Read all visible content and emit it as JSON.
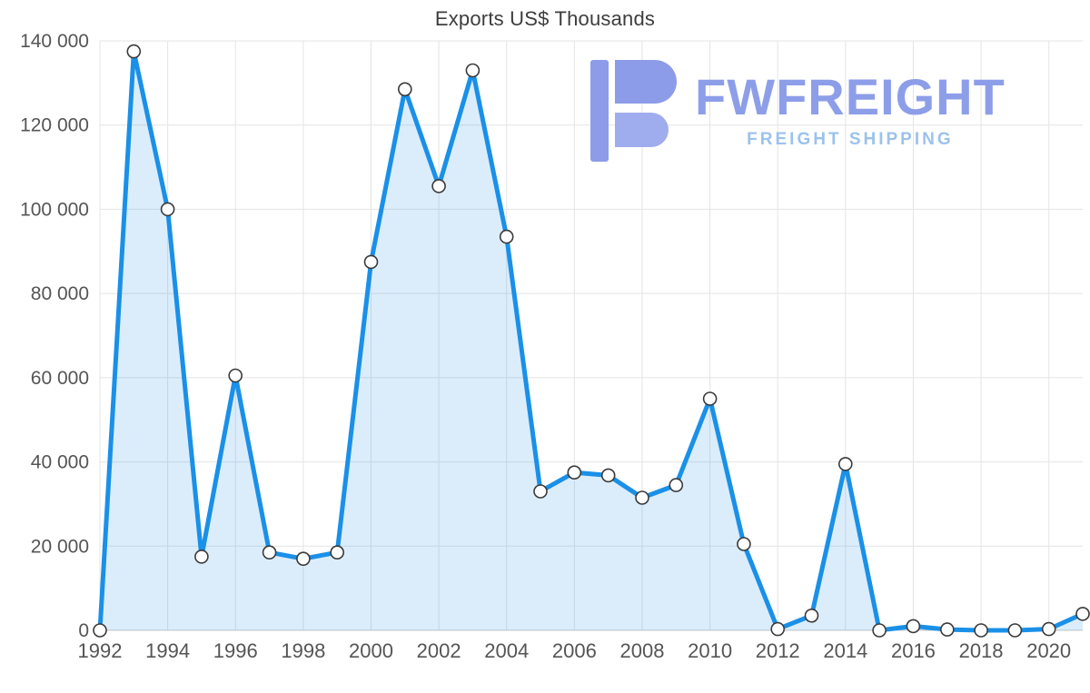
{
  "title": "Exports US$ Thousands",
  "logo": {
    "brand": "FWFREIGHT",
    "tagline": "FREIGHT SHIPPING"
  },
  "colors": {
    "line": "#1a90e8",
    "fill": "rgba(30,144,232,0.16)",
    "marker_fill": "#ffffff",
    "marker_stroke": "#3a3a3a",
    "grid": "#e4e4e4",
    "zero_line": "#c9c9c9",
    "axis_text": "#555555",
    "title_text": "#3d3d3d",
    "logo_primary": "#8d9ee9",
    "logo_secondary": "#9cc2ec"
  },
  "chart_data": {
    "type": "area",
    "title": "Exports US$ Thousands",
    "x": [
      1992,
      1993,
      1994,
      1995,
      1996,
      1997,
      1998,
      1999,
      2000,
      2001,
      2002,
      2003,
      2004,
      2005,
      2006,
      2007,
      2008,
      2009,
      2010,
      2011,
      2012,
      2013,
      2014,
      2015,
      2016,
      2017,
      2018,
      2019,
      2020,
      2021
    ],
    "values": [
      0,
      137500,
      100000,
      17500,
      60500,
      18500,
      17000,
      18500,
      87500,
      128500,
      105500,
      133000,
      93500,
      33000,
      37500,
      36800,
      31500,
      34500,
      55000,
      20500,
      300,
      3500,
      39500,
      0,
      1000,
      200,
      0,
      0,
      300,
      3900
    ],
    "xlabel": "",
    "ylabel": "",
    "ylim": [
      0,
      140000
    ],
    "ytick_step": 20000,
    "xtick_step": 2,
    "grid": true,
    "legend": "none",
    "ytick_labels": [
      "0",
      "20 000",
      "40 000",
      "60 000",
      "80 000",
      "100 000",
      "120 000",
      "140 000"
    ],
    "xtick_labels": [
      "1992",
      "1994",
      "1996",
      "1998",
      "2000",
      "2002",
      "2004",
      "2006",
      "2008",
      "2010",
      "2012",
      "2014",
      "2016",
      "2018",
      "2020"
    ]
  }
}
